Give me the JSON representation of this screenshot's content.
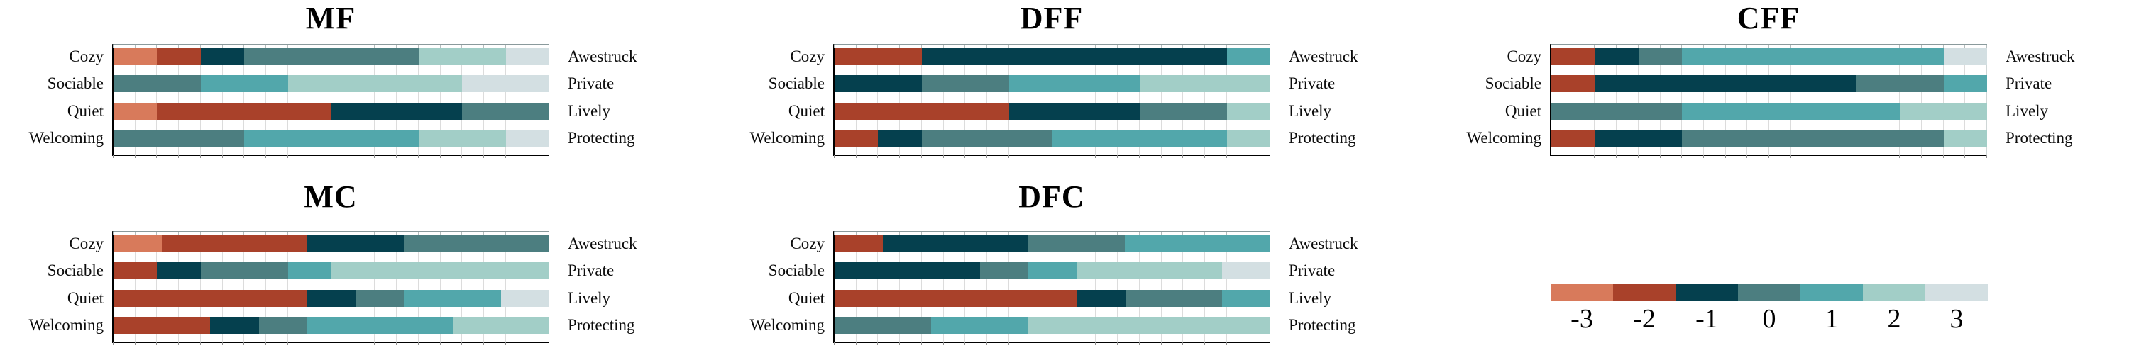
{
  "figure": {
    "description": "Diverging stacked Likert bar charts for five environments",
    "left_categories": [
      "Cozy",
      "Sociable",
      "Quiet",
      "Welcoming"
    ],
    "right_categories": [
      "Awestruck",
      "Private",
      "Lively",
      "Protecting"
    ]
  },
  "legend": {
    "labels": [
      "-3",
      "-2",
      "-1",
      "0",
      "1",
      "2",
      "3"
    ],
    "colors": [
      "#d87a5b",
      "#a9412a",
      "#05404e",
      "#4c7e80",
      "#52a7ab",
      "#a2cec7",
      "#d3dfe2"
    ]
  },
  "chart_data": [
    {
      "type": "bar",
      "orientation": "horizontal",
      "stacked": true,
      "title": "MF",
      "grid": {
        "row": 0,
        "col": 0
      },
      "levels": [
        -3,
        -2,
        -1,
        0,
        1,
        2,
        3
      ],
      "colors": [
        "#d87a5b",
        "#a9412a",
        "#05404e",
        "#4c7e80",
        "#52a7ab",
        "#a2cec7",
        "#d3dfe2"
      ],
      "categories_left": [
        "Cozy",
        "Sociable",
        "Quiet",
        "Welcoming"
      ],
      "categories_right": [
        "Awestruck",
        "Private",
        "Lively",
        "Protecting"
      ],
      "rows_pct": [
        [
          10,
          10,
          10,
          40,
          0,
          20,
          10
        ],
        [
          0,
          0,
          0,
          20,
          20,
          40,
          20
        ],
        [
          10,
          40,
          30,
          20,
          0,
          0,
          0
        ],
        [
          0,
          0,
          0,
          30,
          40,
          20,
          10
        ]
      ],
      "x_axis": {
        "range_pct": [
          0,
          100
        ],
        "gridline_interval_pct": 5,
        "tick_labels_visible": false
      }
    },
    {
      "type": "bar",
      "orientation": "horizontal",
      "stacked": true,
      "title": "DFF",
      "grid": {
        "row": 0,
        "col": 1
      },
      "levels": [
        -3,
        -2,
        -1,
        0,
        1,
        2,
        3
      ],
      "colors": [
        "#d87a5b",
        "#a9412a",
        "#05404e",
        "#4c7e80",
        "#52a7ab",
        "#a2cec7",
        "#d3dfe2"
      ],
      "categories_left": [
        "Cozy",
        "Sociable",
        "Quiet",
        "Welcoming"
      ],
      "categories_right": [
        "Awestruck",
        "Private",
        "Lively",
        "Protecting"
      ],
      "rows_pct": [
        [
          0,
          20,
          70,
          0,
          10,
          0,
          0
        ],
        [
          0,
          0,
          20,
          20,
          30,
          30,
          0
        ],
        [
          0,
          40,
          30,
          20,
          0,
          10,
          0
        ],
        [
          0,
          10,
          10,
          30,
          40,
          10,
          0
        ]
      ],
      "x_axis": {
        "range_pct": [
          0,
          100
        ],
        "gridline_interval_pct": 5,
        "tick_labels_visible": false
      }
    },
    {
      "type": "bar",
      "orientation": "horizontal",
      "stacked": true,
      "title": "CFF",
      "grid": {
        "row": 0,
        "col": 2
      },
      "levels": [
        -3,
        -2,
        -1,
        0,
        1,
        2,
        3
      ],
      "colors": [
        "#d87a5b",
        "#a9412a",
        "#05404e",
        "#4c7e80",
        "#52a7ab",
        "#a2cec7",
        "#d3dfe2"
      ],
      "categories_left": [
        "Cozy",
        "Sociable",
        "Quiet",
        "Welcoming"
      ],
      "categories_right": [
        "Awestruck",
        "Private",
        "Lively",
        "Protecting"
      ],
      "rows_pct": [
        [
          0,
          10,
          10,
          10,
          60,
          0,
          10
        ],
        [
          0,
          10,
          60,
          20,
          10,
          0,
          0
        ],
        [
          0,
          0,
          0,
          30,
          50,
          20,
          0
        ],
        [
          0,
          10,
          20,
          60,
          0,
          10,
          0
        ]
      ],
      "x_axis": {
        "range_pct": [
          0,
          100
        ],
        "gridline_interval_pct": 5,
        "tick_labels_visible": false
      }
    },
    {
      "type": "bar",
      "orientation": "horizontal",
      "stacked": true,
      "title": "MC",
      "grid": {
        "row": 1,
        "col": 0
      },
      "levels": [
        -3,
        -2,
        -1,
        0,
        1,
        2,
        3
      ],
      "colors": [
        "#d87a5b",
        "#a9412a",
        "#05404e",
        "#4c7e80",
        "#52a7ab",
        "#a2cec7",
        "#d3dfe2"
      ],
      "categories_left": [
        "Cozy",
        "Sociable",
        "Quiet",
        "Welcoming"
      ],
      "categories_right": [
        "Awestruck",
        "Private",
        "Lively",
        "Protecting"
      ],
      "rows_pct": [
        [
          11.1,
          33.3,
          22.2,
          33.3,
          0,
          0,
          0
        ],
        [
          0,
          10,
          10,
          20,
          10,
          50,
          0
        ],
        [
          0,
          44.4,
          11.1,
          11.1,
          22.2,
          0,
          11.1
        ],
        [
          0,
          22.2,
          11.1,
          11.1,
          33.3,
          22.2,
          0
        ]
      ],
      "x_axis": {
        "range_pct": [
          0,
          100
        ],
        "gridline_interval_pct": 5,
        "tick_labels_visible": false
      }
    },
    {
      "type": "bar",
      "orientation": "horizontal",
      "stacked": true,
      "title": "DFC",
      "grid": {
        "row": 1,
        "col": 1
      },
      "levels": [
        -3,
        -2,
        -1,
        0,
        1,
        2,
        3
      ],
      "colors": [
        "#d87a5b",
        "#a9412a",
        "#05404e",
        "#4c7e80",
        "#52a7ab",
        "#a2cec7",
        "#d3dfe2"
      ],
      "categories_left": [
        "Cozy",
        "Sociable",
        "Quiet",
        "Welcoming"
      ],
      "categories_right": [
        "Awestruck",
        "Private",
        "Lively",
        "Protecting"
      ],
      "rows_pct": [
        [
          0,
          11.1,
          33.3,
          22.2,
          33.3,
          0,
          0
        ],
        [
          0,
          0,
          33.3,
          11.1,
          11.1,
          33.3,
          11.1
        ],
        [
          0,
          55.6,
          11.1,
          22.2,
          11.1,
          0,
          0
        ],
        [
          0,
          0,
          0,
          22.2,
          22.2,
          55.6,
          0
        ]
      ],
      "x_axis": {
        "range_pct": [
          0,
          100
        ],
        "gridline_interval_pct": 5,
        "tick_labels_visible": false
      }
    }
  ]
}
